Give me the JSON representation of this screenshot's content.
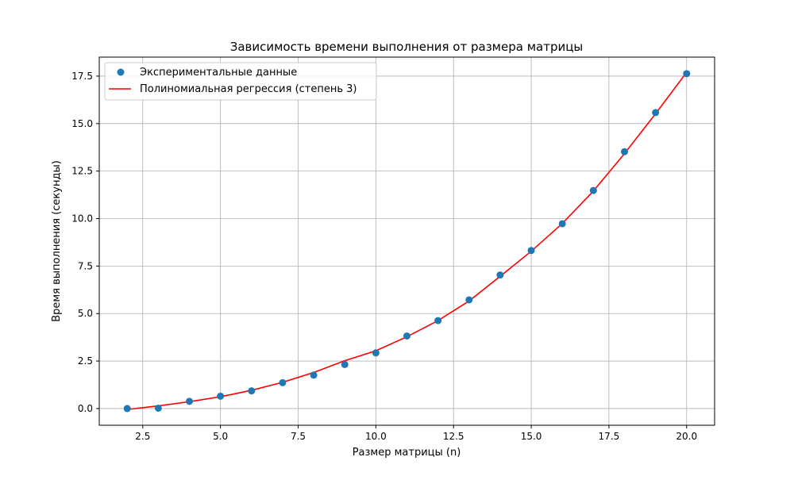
{
  "chart_data": {
    "type": "scatter",
    "title": "Зависимость времени выполнения от размера матрицы",
    "xlabel": "Размер матрицы (n)",
    "ylabel": "Время выполнения (секунды)",
    "xlim": [
      1.1,
      20.9
    ],
    "ylim": [
      -0.88,
      18.5
    ],
    "x_ticks": [
      2.5,
      5.0,
      7.5,
      10.0,
      12.5,
      15.0,
      17.5,
      20.0
    ],
    "y_ticks": [
      0.0,
      2.5,
      5.0,
      7.5,
      10.0,
      12.5,
      15.0,
      17.5
    ],
    "grid": true,
    "legend_position": "top-left",
    "series": [
      {
        "name": "Экспериментальные данные",
        "kind": "scatter",
        "color": "#1f77b4",
        "x": [
          2,
          3,
          4,
          5,
          6,
          7,
          8,
          9,
          10,
          11,
          12,
          13,
          14,
          15,
          16,
          17,
          18,
          19,
          20
        ],
        "y": [
          0.0,
          0.02,
          0.38,
          0.65,
          0.93,
          1.36,
          1.76,
          2.32,
          2.93,
          3.82,
          4.63,
          5.72,
          7.03,
          8.32,
          9.73,
          11.48,
          13.52,
          15.58,
          17.63
        ]
      },
      {
        "name": "Полиномиальная регрессия (степень 3)",
        "kind": "line",
        "color": "#ff0000",
        "x": [
          2,
          3,
          4,
          5,
          6,
          7,
          8,
          9,
          10,
          11,
          12,
          13,
          14,
          15,
          16,
          17,
          18,
          19,
          20
        ],
        "y": [
          -0.05,
          0.14,
          0.36,
          0.62,
          0.96,
          1.38,
          1.9,
          2.52,
          3.04,
          3.78,
          4.63,
          5.66,
          6.96,
          8.28,
          9.74,
          11.45,
          13.42,
          15.52,
          17.7
        ]
      }
    ]
  }
}
